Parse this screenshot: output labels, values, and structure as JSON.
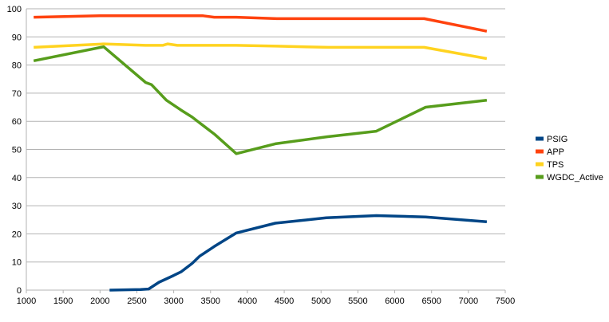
{
  "chart_data": {
    "type": "line",
    "title": "",
    "xlabel": "",
    "ylabel": "",
    "xlim": [
      1000,
      7500
    ],
    "ylim": [
      0,
      100
    ],
    "xticks": [
      1000,
      1500,
      2000,
      2500,
      3000,
      3500,
      4000,
      4500,
      5000,
      5500,
      6000,
      6500,
      7000,
      7500
    ],
    "yticks": [
      0,
      10,
      20,
      30,
      40,
      50,
      60,
      70,
      80,
      90,
      100
    ],
    "grid": "horizontal",
    "legend_position": "right",
    "series": [
      {
        "name": "PSIG",
        "color": "#004586",
        "points": [
          [
            2130,
            0
          ],
          [
            2550,
            0.2
          ],
          [
            2660,
            0.4
          ],
          [
            2800,
            2.8
          ],
          [
            3000,
            5.2
          ],
          [
            3100,
            6.5
          ],
          [
            3250,
            9.5
          ],
          [
            3350,
            12
          ],
          [
            3550,
            15.5
          ],
          [
            3850,
            20.3
          ],
          [
            4380,
            23.8
          ],
          [
            5070,
            25.7
          ],
          [
            5750,
            26.5
          ],
          [
            6420,
            26
          ],
          [
            7250,
            24.3
          ]
        ]
      },
      {
        "name": "APP",
        "color": "#ff420e",
        "points": [
          [
            1100,
            97
          ],
          [
            2000,
            97.5
          ],
          [
            2620,
            97.5
          ],
          [
            3000,
            97.5
          ],
          [
            3400,
            97.5
          ],
          [
            3550,
            97
          ],
          [
            3850,
            97
          ],
          [
            4400,
            96.5
          ],
          [
            5100,
            96.5
          ],
          [
            5750,
            96.5
          ],
          [
            6400,
            96.5
          ],
          [
            7250,
            92
          ]
        ]
      },
      {
        "name": "TPS",
        "color": "#ffd320",
        "points": [
          [
            1100,
            86.3
          ],
          [
            2050,
            87.5
          ],
          [
            2620,
            87
          ],
          [
            2850,
            87
          ],
          [
            2920,
            87.5
          ],
          [
            3050,
            87
          ],
          [
            3850,
            87
          ],
          [
            4400,
            86.7
          ],
          [
            5100,
            86.3
          ],
          [
            5750,
            86.3
          ],
          [
            6400,
            86.3
          ],
          [
            7250,
            82.3
          ]
        ]
      },
      {
        "name": "WGDC_Active",
        "color": "#579d1c",
        "points": [
          [
            1100,
            81.5
          ],
          [
            2050,
            86.5
          ],
          [
            2620,
            73.8
          ],
          [
            2700,
            73
          ],
          [
            2900,
            67.5
          ],
          [
            3100,
            64
          ],
          [
            3250,
            61.5
          ],
          [
            3350,
            59.5
          ],
          [
            3550,
            55.5
          ],
          [
            3850,
            48.5
          ],
          [
            4380,
            52
          ],
          [
            5080,
            54.5
          ],
          [
            5750,
            56.5
          ],
          [
            6420,
            65
          ],
          [
            7250,
            67.5
          ]
        ]
      }
    ]
  }
}
